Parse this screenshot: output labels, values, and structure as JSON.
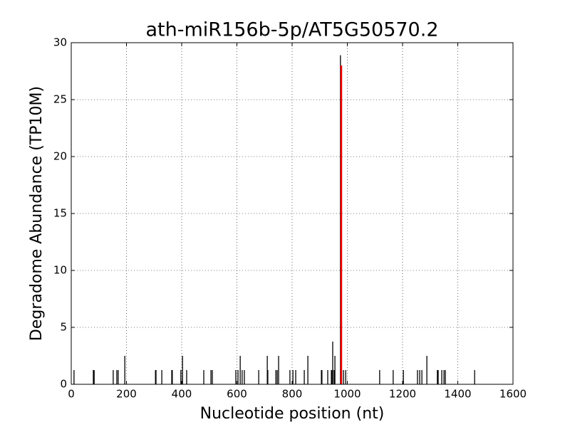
{
  "chart_data": {
    "type": "stem",
    "title": "ath-miR156b-5p/AT5G50570.2",
    "xlabel": "Nucleotide position (nt)",
    "ylabel": "Degradome Abundance (TP10M)",
    "xlim": [
      0,
      1600
    ],
    "xticks": [
      0,
      200,
      400,
      600,
      800,
      1000,
      1200,
      1400,
      1600
    ],
    "ylim": [
      0,
      30
    ],
    "yticks": [
      0,
      5,
      10,
      15,
      20,
      25,
      30
    ],
    "grid": true,
    "series": [
      {
        "color": "#000000",
        "x": [
          10,
          80,
          83,
          152,
          165,
          170,
          194,
          305,
          307,
          328,
          364,
          366,
          397,
          403,
          418,
          480,
          506,
          511,
          596,
          604,
          612,
          619,
          627,
          679,
          710,
          712,
          741,
          746,
          751,
          792,
          803,
          813,
          844,
          857,
          906,
          908,
          929,
          942,
          945,
          947,
          952,
          955,
          975,
          986,
          994,
          1117,
          1166,
          1203,
          1254,
          1262,
          1270,
          1288,
          1326,
          1329,
          1342,
          1350,
          1355,
          1461
        ],
        "values": [
          1.25,
          1.25,
          1.25,
          1.25,
          1.25,
          1.25,
          2.5,
          1.25,
          1.25,
          1.25,
          1.25,
          1.25,
          1.25,
          2.5,
          1.25,
          1.25,
          1.25,
          1.25,
          1.25,
          1.25,
          2.5,
          1.25,
          1.25,
          1.25,
          2.5,
          1.25,
          1.25,
          1.25,
          2.5,
          1.25,
          1.25,
          1.25,
          1.25,
          2.5,
          1.25,
          1.25,
          1.25,
          1.25,
          1.25,
          3.75,
          1.25,
          2.5,
          28.9,
          1.25,
          1.25,
          1.25,
          1.25,
          1.25,
          1.25,
          1.25,
          1.25,
          2.5,
          1.25,
          1.25,
          1.25,
          1.25,
          1.25,
          1.25
        ]
      },
      {
        "color": "#ff0000",
        "x": [
          978
        ],
        "values": [
          28
        ]
      }
    ]
  }
}
